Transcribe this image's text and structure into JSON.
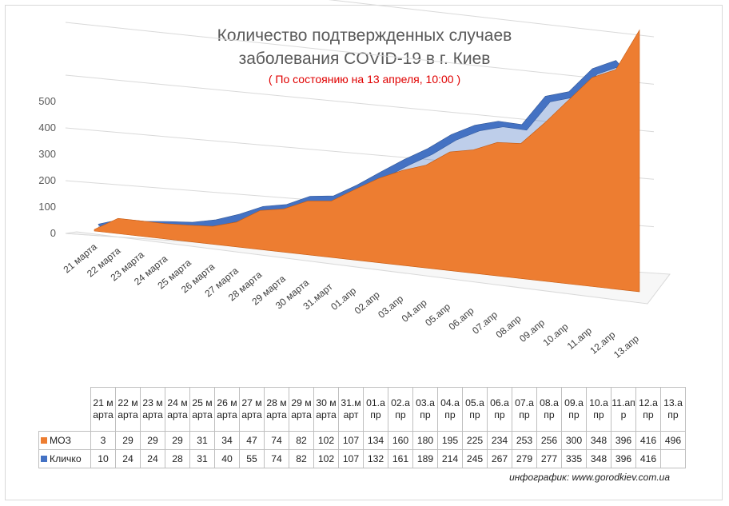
{
  "chart_data": {
    "type": "area",
    "title": "Количество подтвержденных случаев",
    "title_line2": "заболевания COVID-19 в г. Киев",
    "subtitle": "( По состоянию на 13 апреля, 10:00 )",
    "categories": [
      "21 марта",
      "22 марта",
      "23 марта",
      "24 марта",
      "25 марта",
      "26 марта",
      "27 марта",
      "28 марта",
      "29 марта",
      "30 марта",
      "31.март",
      "01.апр",
      "02.апр",
      "03.апр",
      "04.апр",
      "05.апр",
      "06.апр",
      "07.апр",
      "08.апр",
      "09.апр",
      "10.апр",
      "11.апр",
      "12.апр",
      "13.апр"
    ],
    "table_headers": [
      "21 марта",
      "22 марта",
      "23 марта",
      "24 марта",
      "25 марта",
      "26 марта",
      "27 марта",
      "28 марта",
      "29 марта",
      "30 марта",
      "31.март",
      "01.апр",
      "02.апр",
      "03.апр",
      "04.апр",
      "05.апр",
      "06.апр",
      "07.апр",
      "08.апр",
      "09.апр",
      "10.апр",
      "11.апр",
      "12.апр",
      "13.апр"
    ],
    "series": [
      {
        "name": "МОЗ",
        "color": "#ed7d31",
        "values": [
          3,
          29,
          29,
          29,
          31,
          34,
          47,
          74,
          82,
          102,
          107,
          134,
          160,
          180,
          195,
          225,
          234,
          253,
          256,
          300,
          348,
          396,
          416,
          496
        ]
      },
      {
        "name": "Кличко",
        "color": "#4472c4",
        "values": [
          10,
          24,
          24,
          28,
          31,
          40,
          55,
          74,
          82,
          102,
          107,
          132,
          161,
          189,
          214,
          245,
          267,
          279,
          277,
          335,
          348,
          396,
          416,
          null
        ]
      }
    ],
    "y_ticks": [
      "0",
      "100",
      "200",
      "300",
      "400",
      "500"
    ],
    "ylim": [
      0,
      500
    ],
    "grid": true,
    "legend": "data-table"
  },
  "credit": "инфографик: www.gorodkiev.com.ua"
}
